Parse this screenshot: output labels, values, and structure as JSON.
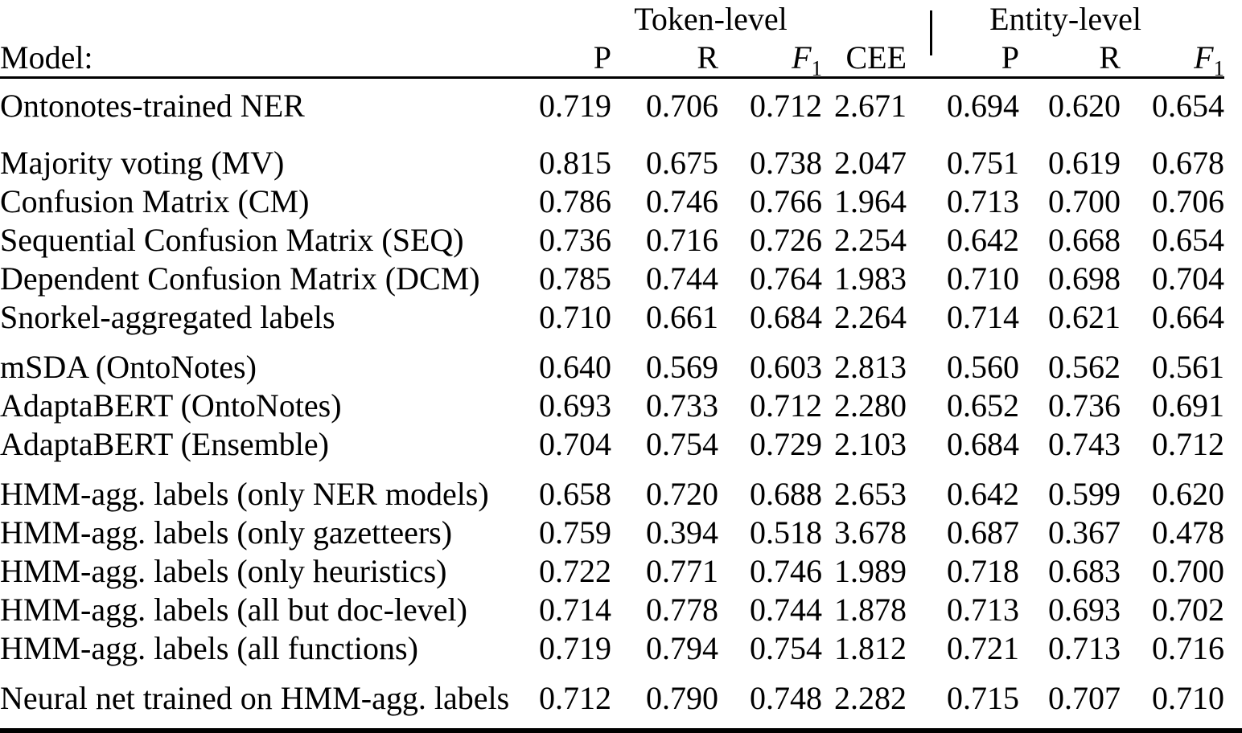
{
  "table": {
    "model_header": "Model:",
    "col_groups": [
      {
        "label": "Token-level",
        "span": 4
      },
      {
        "label": "Entity-level",
        "span": 3
      }
    ],
    "columns": [
      {
        "label": "P"
      },
      {
        "label": "R"
      },
      {
        "label": "F",
        "sub": "1",
        "italic": true
      },
      {
        "label": "CEE"
      },
      {
        "label": "P"
      },
      {
        "label": "R"
      },
      {
        "label": "F",
        "sub": "1",
        "italic": true
      }
    ],
    "groups": [
      {
        "rows": [
          {
            "model": "Ontonotes-trained NER",
            "values": [
              "0.719",
              "0.706",
              "0.712",
              "2.671",
              "0.694",
              "0.620",
              "0.654"
            ],
            "bold": []
          }
        ]
      },
      {
        "rows": [
          {
            "model": "Majority voting (MV)",
            "values": [
              "0.815",
              "0.675",
              "0.738",
              "2.047",
              "0.751",
              "0.619",
              "0.678"
            ],
            "bold": [
              0,
              4
            ]
          },
          {
            "model": "Confusion Matrix (CM)",
            "values": [
              "0.786",
              "0.746",
              "0.766",
              "1.964",
              "0.713",
              "0.700",
              "0.706"
            ],
            "bold": [
              2
            ]
          },
          {
            "model": "Sequential Confusion Matrix (SEQ)",
            "values": [
              "0.736",
              "0.716",
              "0.726",
              "2.254",
              "0.642",
              "0.668",
              "0.654"
            ],
            "bold": []
          },
          {
            "model": "Dependent Confusion Matrix (DCM)",
            "values": [
              "0.785",
              "0.744",
              "0.764",
              "1.983",
              "0.710",
              "0.698",
              "0.704"
            ],
            "bold": []
          },
          {
            "model": "Snorkel-aggregated labels",
            "values": [
              "0.710",
              "0.661",
              "0.684",
              "2.264",
              "0.714",
              "0.621",
              "0.664"
            ],
            "bold": []
          }
        ]
      },
      {
        "rows": [
          {
            "model": "mSDA (OntoNotes)",
            "values": [
              "0.640",
              "0.569",
              "0.603",
              "2.813",
              "0.560",
              "0.562",
              "0.561"
            ],
            "bold": []
          },
          {
            "model": "AdaptaBERT (OntoNotes)",
            "values": [
              "0.693",
              "0.733",
              "0.712",
              "2.280",
              "0.652",
              "0.736",
              "0.691"
            ],
            "bold": []
          },
          {
            "model": "AdaptaBERT (Ensemble)",
            "values": [
              "0.704",
              "0.754",
              "0.729",
              "2.103",
              "0.684",
              "0.743",
              "0.712"
            ],
            "bold": [
              5
            ]
          }
        ]
      },
      {
        "rows": [
          {
            "model": "HMM-agg. labels (only NER models)",
            "values": [
              "0.658",
              "0.720",
              "0.688",
              "2.653",
              "0.642",
              "0.599",
              "0.620"
            ],
            "bold": []
          },
          {
            "model": "HMM-agg. labels (only gazetteers)",
            "values": [
              "0.759",
              "0.394",
              "0.518",
              "3.678",
              "0.687",
              "0.367",
              "0.478"
            ],
            "bold": []
          },
          {
            "model": "HMM-agg. labels (only heuristics)",
            "values": [
              "0.722",
              "0.771",
              "0.746",
              "1.989",
              "0.718",
              "0.683",
              "0.700"
            ],
            "bold": []
          },
          {
            "model": "HMM-agg. labels (all but doc-level)",
            "values": [
              "0.714",
              "0.778",
              "0.744",
              "1.878",
              "0.713",
              "0.693",
              "0.702"
            ],
            "bold": []
          },
          {
            "model": "HMM-agg. labels (all functions)",
            "values": [
              "0.719",
              "0.794",
              "0.754",
              "1.812",
              "0.721",
              "0.713",
              "0.716"
            ],
            "bold": [
              1,
              3,
              6
            ]
          }
        ]
      },
      {
        "rows": [
          {
            "model": "Neural net trained on HMM-agg. labels",
            "values": [
              "0.712",
              "0.790",
              "0.748",
              "2.282",
              "0.715",
              "0.707",
              "0.710"
            ],
            "bold": []
          }
        ]
      }
    ]
  },
  "colors": {
    "text": "#000000",
    "background": "#ffffff"
  }
}
